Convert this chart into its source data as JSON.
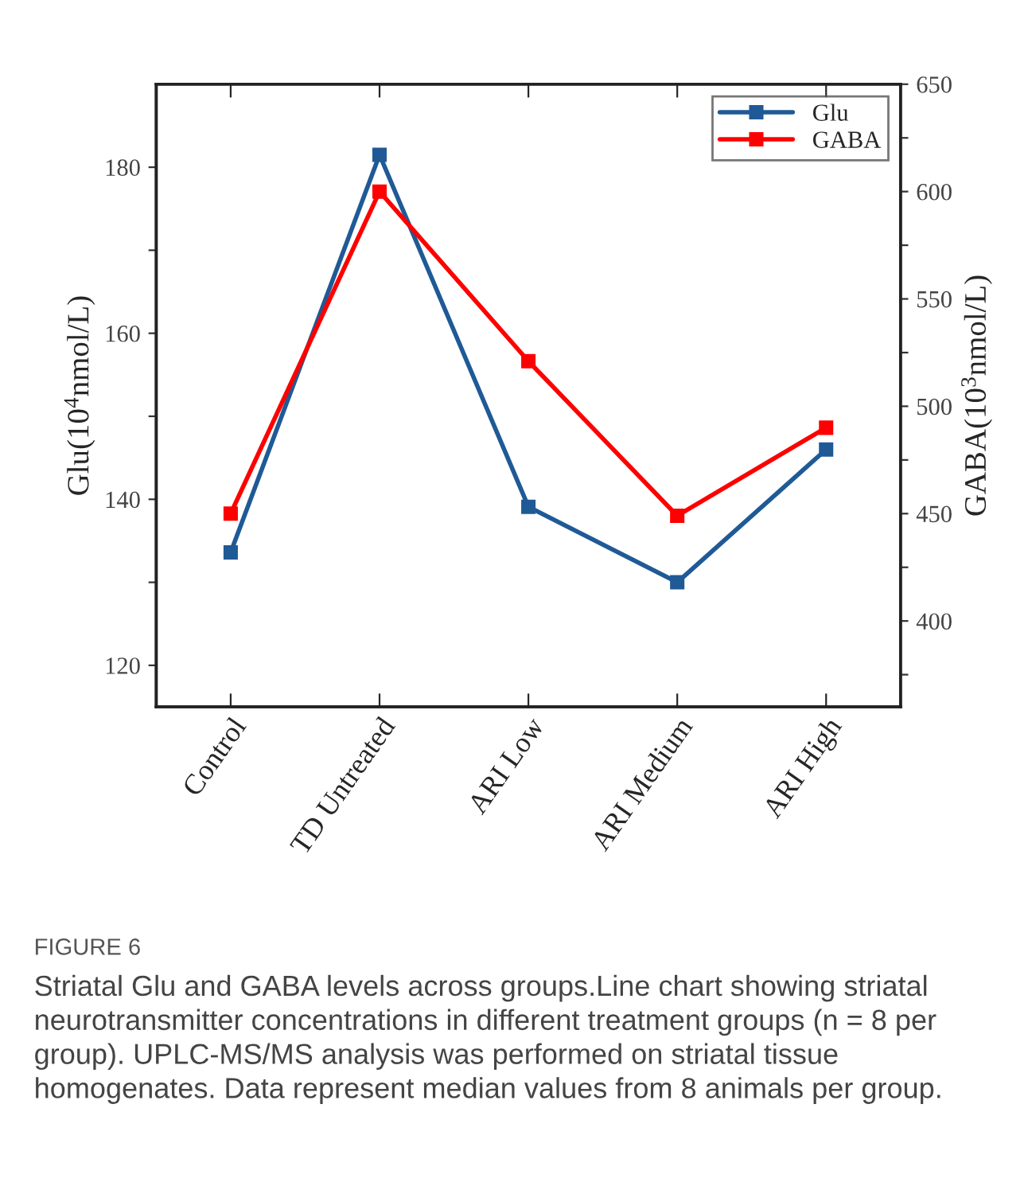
{
  "chart_data": {
    "type": "line",
    "categories": [
      "Control",
      "TD Untreated",
      "ARI Low",
      "ARI Medium",
      "ARI High"
    ],
    "series": [
      {
        "name": "Glu",
        "color": "#1f5a96",
        "values": [
          133.6,
          181.5,
          139.1,
          130.0,
          146.0
        ]
      },
      {
        "name": "GABA",
        "color": "#ff0000",
        "axis": "y2",
        "values": [
          450,
          600,
          521,
          449,
          490
        ]
      }
    ],
    "ylabel": "Glu(10$^{4}$nmol/L)",
    "y2label": "GABA(10$^{3}$nmol/L)",
    "ylim": [
      115,
      190
    ],
    "yticks": [
      120,
      {
        "value": 130,
        "label": null
      },
      140,
      {
        "value": 150,
        "label": null
      },
      160,
      {
        "value": 170,
        "label": null
      },
      180
    ],
    "y2lim": [
      360,
      650
    ],
    "y2ticks": [
      {
        "value": 375,
        "label": null
      },
      400,
      {
        "value": 425,
        "label": null
      },
      450,
      {
        "value": 475,
        "label": null
      },
      500,
      {
        "value": 525,
        "label": null
      },
      550,
      {
        "value": 575,
        "label": null
      },
      600,
      {
        "value": 625,
        "label": null
      },
      650
    ],
    "marker": "square",
    "line_style": "solid",
    "legend": "top right",
    "grid": false,
    "annotations": [
      "FIGURE 6",
      "Striatal Glu and GABA levels across groups.Line chart showing striatal neurotransmitter concentrations in different treatment groups (n = 8 per group). UPLC-MS/MS analysis was performed on striatal tissue homogenates. Data represent median values from 8 animals per group."
    ]
  }
}
